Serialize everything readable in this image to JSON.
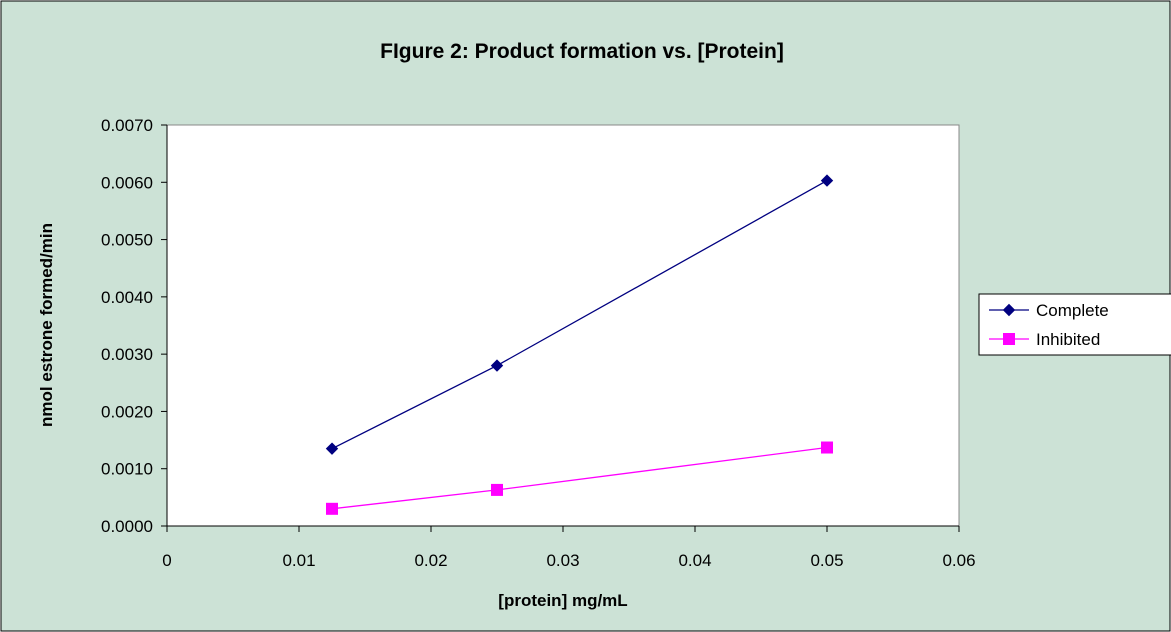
{
  "chart_data": {
    "type": "line",
    "title": "FIgure 2: Product formation vs. [Protein]",
    "xlabel": "[protein] mg/mL",
    "ylabel": "nmol estrone formed/min",
    "xlim": [
      0,
      0.06
    ],
    "ylim": [
      0,
      0.007
    ],
    "x_ticks": [
      "0",
      "0.01",
      "0.02",
      "0.03",
      "0.04",
      "0.05",
      "0.06"
    ],
    "y_ticks": [
      "0.0000",
      "0.0010",
      "0.0020",
      "0.0030",
      "0.0040",
      "0.0050",
      "0.0060",
      "0.0070"
    ],
    "grid": false,
    "legend_position": "right",
    "x": [
      0.0125,
      0.025,
      0.05
    ],
    "series": [
      {
        "name": "Complete",
        "values": [
          0.00135,
          0.0028,
          0.00603
        ],
        "color": "#000080",
        "marker": "diamond"
      },
      {
        "name": "Inhibited",
        "values": [
          0.0003,
          0.00063,
          0.00137
        ],
        "color": "#FF00FF",
        "marker": "square"
      }
    ],
    "colors": {
      "chart_area": "#CCE2D6",
      "plot_area": "#FFFFFF",
      "axis": "#000000"
    }
  }
}
